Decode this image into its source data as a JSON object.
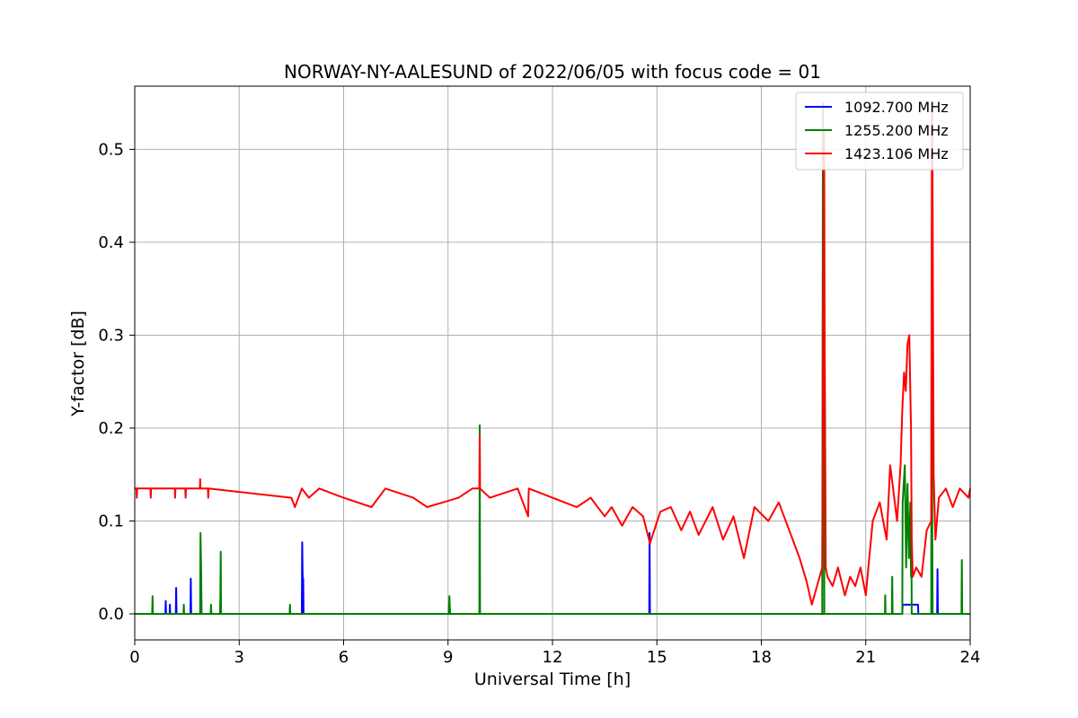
{
  "chart_data": {
    "type": "line",
    "title": "NORWAY-NY-AALESUND of 2022/06/05 with focus code = 01",
    "xlabel": "Universal Time [h]",
    "ylabel": "Y-factor [dB]",
    "xlim": [
      0,
      24
    ],
    "ylim": [
      -0.028,
      0.568
    ],
    "xticks": [
      0,
      3,
      6,
      9,
      12,
      15,
      18,
      21,
      24
    ],
    "yticks": [
      0.0,
      0.1,
      0.2,
      0.3,
      0.4,
      0.5
    ],
    "ytick_labels": [
      "0.0",
      "0.1",
      "0.2",
      "0.3",
      "0.4",
      "0.5"
    ],
    "grid": true,
    "legend_position": "top-right",
    "series": [
      {
        "name": "1092.700 MHz",
        "color": "#0000ff",
        "x": [
          0,
          0.88,
          0.89,
          0.9,
          1.0,
          1.01,
          1.02,
          1.18,
          1.19,
          1.2,
          1.6,
          1.61,
          1.62,
          4.8,
          4.81,
          4.82,
          4.83,
          4.84,
          4.85,
          14.78,
          14.79,
          14.8,
          22.05,
          22.06,
          22.5,
          22.51,
          23.05,
          23.06,
          23.07,
          24
        ],
        "y": [
          0,
          0,
          0.014,
          0,
          0,
          0.01,
          0,
          0,
          0.028,
          0,
          0,
          0.038,
          0,
          0,
          0.077,
          0.045,
          0.035,
          0.038,
          0,
          0,
          0.087,
          0,
          0,
          0.01,
          0.01,
          0,
          0,
          0.048,
          0,
          0
        ]
      },
      {
        "name": "1255.200 MHz",
        "color": "#008000",
        "x": [
          0,
          0.5,
          0.51,
          0.52,
          1.4,
          1.41,
          1.42,
          1.88,
          1.89,
          1.9,
          1.91,
          1.92,
          2.18,
          2.19,
          2.2,
          2.45,
          2.46,
          2.47,
          2.48,
          4.45,
          4.46,
          4.47,
          9.02,
          9.03,
          9.04,
          9.05,
          9.06,
          9.9,
          9.91,
          9.92,
          19.75,
          19.76,
          19.77,
          19.78,
          19.79,
          19.8,
          19.81,
          21.55,
          21.56,
          21.57,
          21.75,
          21.76,
          21.77,
          22.05,
          22.06,
          22.12,
          22.16,
          22.2,
          22.24,
          22.28,
          22.3,
          22.31,
          22.32,
          22.88,
          22.89,
          22.9,
          22.91,
          22.92,
          23.75,
          23.76,
          23.77,
          24
        ],
        "y": [
          0,
          0,
          0.019,
          0,
          0,
          0.01,
          0,
          0,
          0.087,
          0.065,
          0.04,
          0,
          0,
          0.01,
          0,
          0,
          0.018,
          0.067,
          0,
          0,
          0.01,
          0,
          0,
          0.01,
          0.019,
          0.008,
          0,
          0,
          0.203,
          0,
          0,
          0.3,
          0.55,
          0.42,
          0.38,
          0.15,
          0,
          0,
          0.02,
          0,
          0,
          0.04,
          0,
          0,
          0.12,
          0.16,
          0.05,
          0.14,
          0.06,
          0.12,
          0.04,
          0.1,
          0,
          0,
          0.3,
          0.38,
          0.08,
          0,
          0,
          0.058,
          0,
          0
        ]
      },
      {
        "name": "1423.106 MHz",
        "color": "#ff0000",
        "x": [
          0,
          0.05,
          0.06,
          0.07,
          0.45,
          0.46,
          0.47,
          1.15,
          1.16,
          1.17,
          1.45,
          1.46,
          1.47,
          1.87,
          1.88,
          1.89,
          2.1,
          2.11,
          2.12,
          4.5,
          4.6,
          4.8,
          5.0,
          5.3,
          6.0,
          6.8,
          7.2,
          8.0,
          8.4,
          9.3,
          9.7,
          9.9,
          9.91,
          9.92,
          10.2,
          11.0,
          11.3,
          11.31,
          11.32,
          12.0,
          12.7,
          13.1,
          13.5,
          13.7,
          14.0,
          14.3,
          14.6,
          14.8,
          15.1,
          15.4,
          15.7,
          15.95,
          16.2,
          16.6,
          16.9,
          17.2,
          17.5,
          17.8,
          18.2,
          18.5,
          18.9,
          19.1,
          19.3,
          19.45,
          19.6,
          19.75,
          19.8,
          19.81,
          19.82,
          19.85,
          19.9,
          20.05,
          20.2,
          20.4,
          20.55,
          20.7,
          20.85,
          21.0,
          21.1,
          21.2,
          21.4,
          21.6,
          21.7,
          21.8,
          21.9,
          22.0,
          22.05,
          22.1,
          22.15,
          22.2,
          22.25,
          22.3,
          22.32,
          22.35,
          22.45,
          22.6,
          22.75,
          22.88,
          22.9,
          22.91,
          22.95,
          23.0,
          23.1,
          23.3,
          23.5,
          23.7,
          23.95,
          24
        ],
        "y": [
          0.135,
          0.135,
          0.125,
          0.135,
          0.135,
          0.125,
          0.135,
          0.135,
          0.125,
          0.135,
          0.135,
          0.125,
          0.135,
          0.135,
          0.145,
          0.135,
          0.135,
          0.125,
          0.135,
          0.125,
          0.115,
          0.135,
          0.125,
          0.135,
          0.125,
          0.115,
          0.135,
          0.125,
          0.115,
          0.125,
          0.135,
          0.135,
          0.192,
          0.135,
          0.125,
          0.135,
          0.105,
          0.125,
          0.135,
          0.125,
          0.115,
          0.125,
          0.105,
          0.115,
          0.095,
          0.115,
          0.105,
          0.076,
          0.11,
          0.115,
          0.09,
          0.11,
          0.085,
          0.115,
          0.08,
          0.105,
          0.06,
          0.115,
          0.1,
          0.12,
          0.08,
          0.06,
          0.035,
          0.01,
          0.03,
          0.05,
          0.52,
          0.45,
          0.3,
          0.05,
          0.04,
          0.03,
          0.05,
          0.02,
          0.04,
          0.03,
          0.05,
          0.02,
          0.06,
          0.1,
          0.12,
          0.08,
          0.16,
          0.13,
          0.1,
          0.16,
          0.22,
          0.26,
          0.24,
          0.29,
          0.3,
          0.2,
          0.08,
          0.04,
          0.05,
          0.04,
          0.09,
          0.1,
          0.53,
          0.54,
          0.15,
          0.08,
          0.125,
          0.135,
          0.115,
          0.135,
          0.125,
          0.135
        ]
      }
    ]
  }
}
